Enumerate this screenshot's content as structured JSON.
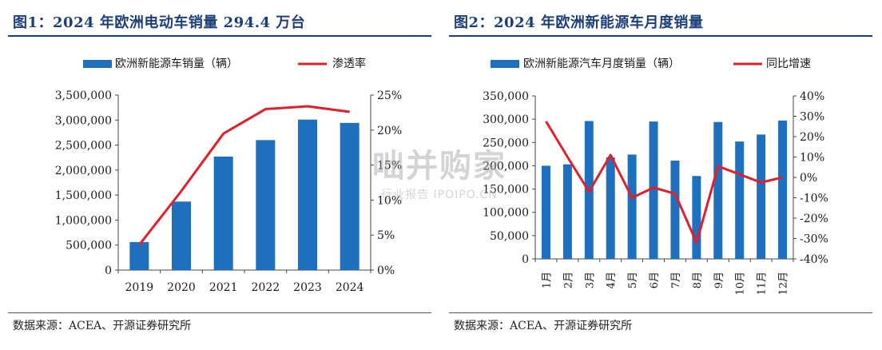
{
  "chart_data": [
    {
      "type": "bar+line",
      "title": "图1：2024 年欧洲电动车销量 294.4 万台",
      "categories": [
        "2019",
        "2020",
        "2021",
        "2022",
        "2023",
        "2024"
      ],
      "series": [
        {
          "name": "欧洲新能源车销量（辆）",
          "type": "bar",
          "axis": "left",
          "color": "#1f6fbf",
          "values": [
            560000,
            1370000,
            2270000,
            2600000,
            3010000,
            2944000
          ]
        },
        {
          "name": "渗透率",
          "type": "line",
          "axis": "right",
          "color": "#e0202a",
          "values": [
            3.6,
            11.3,
            19.5,
            23.0,
            23.4,
            22.6
          ]
        }
      ],
      "y_left": {
        "min": 0,
        "max": 3500000,
        "ticks": [
          "0",
          "500,000",
          "1,000,000",
          "1,500,000",
          "2,000,000",
          "2,500,000",
          "3,000,000",
          "3,500,000"
        ]
      },
      "y_right": {
        "min": 0,
        "max": 25,
        "ticks": [
          "0%",
          "5%",
          "10%",
          "15%",
          "20%",
          "25%"
        ]
      },
      "legend": "top",
      "source": "数据来源：ACEA、开源证券研究所"
    },
    {
      "type": "bar+line",
      "title": "图2：2024 年欧洲新能源车月度销量",
      "categories": [
        "1月",
        "2月",
        "3月",
        "4月",
        "5月",
        "6月",
        "7月",
        "8月",
        "9月",
        "10月",
        "11月",
        "12月"
      ],
      "series": [
        {
          "name": "欧洲新能源汽车月度销量（辆）",
          "type": "bar",
          "axis": "left",
          "color": "#1f6fbf",
          "values": [
            200000,
            203000,
            296000,
            218000,
            224000,
            295000,
            211000,
            178000,
            294000,
            252000,
            267000,
            297000
          ]
        },
        {
          "name": "同比增速",
          "type": "line",
          "axis": "right",
          "color": "#e0202a",
          "values": [
            27.5,
            10.0,
            -7.0,
            11.0,
            -10.0,
            -5.0,
            -8.0,
            -32.0,
            5.5,
            1.5,
            -2.5,
            0.0
          ]
        }
      ],
      "y_left": {
        "min": 0,
        "max": 350000,
        "ticks": [
          "0",
          "50,000",
          "100,000",
          "150,000",
          "200,000",
          "250,000",
          "300,000",
          "350,000"
        ]
      },
      "y_right": {
        "min": -40,
        "max": 40,
        "ticks": [
          "-40%",
          "-30%",
          "-20%",
          "-10%",
          "0%",
          "10%",
          "20%",
          "30%",
          "40%"
        ]
      },
      "legend": "top",
      "source": "数据来源：ACEA、开源证券研究所"
    }
  ],
  "watermark": {
    "line1": "咄并购家",
    "line2": "行业报告 IPOIPO.CN"
  }
}
